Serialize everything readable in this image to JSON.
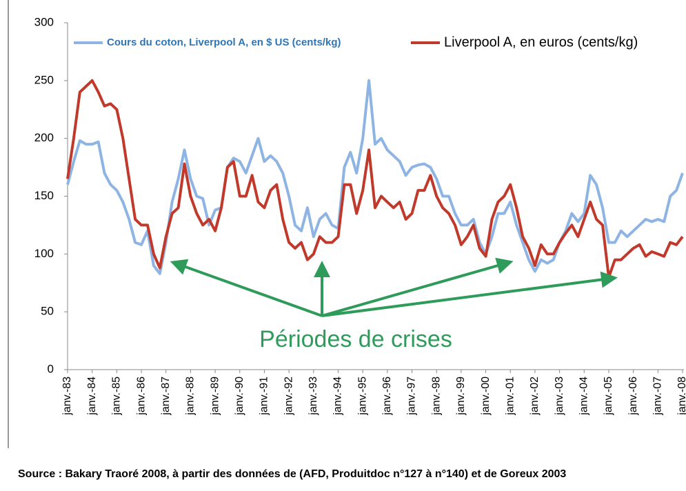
{
  "chart_data": {
    "type": "line",
    "categories": [
      "janv.-83",
      null,
      null,
      null,
      "janv.-84",
      null,
      null,
      null,
      "janv.-85",
      null,
      null,
      null,
      "janv.-86",
      null,
      null,
      null,
      "janv.-87",
      null,
      null,
      null,
      "janv.-88",
      null,
      null,
      null,
      "janv.-89",
      null,
      null,
      null,
      "janv.-90",
      null,
      null,
      null,
      "janv.-91",
      null,
      null,
      null,
      "janv.-92",
      null,
      null,
      null,
      "janv.-93",
      null,
      null,
      null,
      "janv.-94",
      null,
      null,
      null,
      "janv.-95",
      null,
      null,
      null,
      "janv.-96",
      null,
      null,
      null,
      "janv.-97",
      null,
      null,
      null,
      "janv.-98",
      null,
      null,
      null,
      "janv.-99",
      null,
      null,
      null,
      "janv.-00",
      null,
      null,
      null,
      "janv.-01",
      null,
      null,
      null,
      "janv.-02",
      null,
      null,
      null,
      "janv.-03",
      null,
      null,
      null,
      "janv.-04",
      null,
      null,
      null,
      "janv.-05",
      null,
      null,
      null,
      "janv.-06",
      null,
      null,
      null,
      "janv.-07",
      null,
      null,
      null,
      "janv.-08"
    ],
    "series": [
      {
        "name": "Cours du coton, Liverpool A, en $ US (cents/kg)",
        "color": "#8eb4e3",
        "values": [
          160,
          180,
          198,
          195,
          195,
          197,
          170,
          160,
          155,
          145,
          130,
          110,
          108,
          120,
          90,
          83,
          110,
          145,
          165,
          190,
          165,
          150,
          148,
          125,
          138,
          140,
          175,
          183,
          180,
          170,
          185,
          200,
          180,
          185,
          180,
          170,
          150,
          125,
          120,
          140,
          115,
          130,
          135,
          125,
          122,
          175,
          188,
          170,
          200,
          250,
          195,
          200,
          190,
          185,
          180,
          168,
          175,
          177,
          178,
          175,
          165,
          150,
          150,
          135,
          125,
          125,
          130,
          110,
          100,
          115,
          135,
          135,
          145,
          125,
          110,
          95,
          85,
          95,
          92,
          95,
          110,
          120,
          135,
          128,
          135,
          168,
          160,
          140,
          110,
          110,
          120,
          115,
          120,
          125,
          130,
          128,
          130,
          128,
          150,
          155,
          170
        ]
      },
      {
        "name": "Liverpool A, en euros (cents/kg)",
        "color": "#c0392b",
        "values": [
          165,
          200,
          240,
          245,
          250,
          240,
          228,
          230,
          225,
          200,
          165,
          130,
          125,
          125,
          100,
          88,
          115,
          135,
          140,
          178,
          150,
          135,
          125,
          130,
          120,
          140,
          175,
          180,
          150,
          150,
          168,
          145,
          140,
          155,
          160,
          130,
          110,
          105,
          110,
          95,
          100,
          115,
          110,
          110,
          115,
          160,
          160,
          135,
          155,
          190,
          140,
          150,
          145,
          140,
          145,
          130,
          135,
          155,
          155,
          168,
          150,
          140,
          135,
          125,
          108,
          115,
          125,
          105,
          98,
          130,
          145,
          150,
          160,
          140,
          115,
          105,
          90,
          108,
          100,
          100,
          110,
          118,
          125,
          115,
          130,
          145,
          130,
          125,
          80,
          95,
          95,
          100,
          105,
          108,
          98,
          102,
          100,
          98,
          110,
          108,
          115
        ]
      }
    ],
    "ylim": [
      0,
      300
    ],
    "yticks": [
      0,
      50,
      100,
      150,
      200,
      250,
      300
    ],
    "grid": false,
    "legend": "top",
    "annotation": "Périodes de crises",
    "annotation_color": "#2e9b5a",
    "source": "Source : Bakary Traoré 2008, à partir des données de (AFD, Produitdoc n°127 à n°140) et de Goreux 2003"
  }
}
